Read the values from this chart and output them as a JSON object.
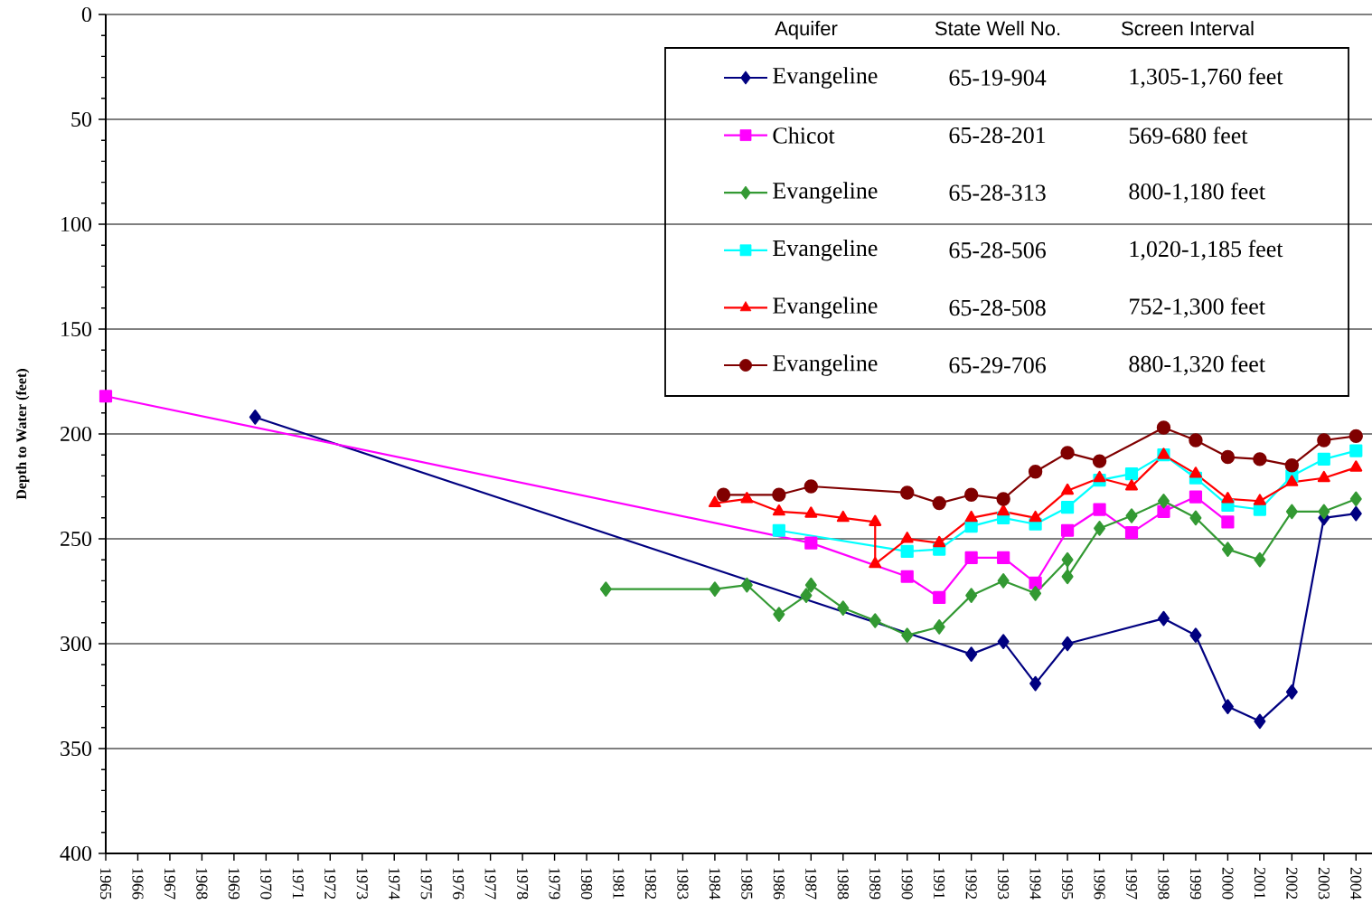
{
  "chart_data": {
    "type": "line",
    "ylabel": "Depth to Water (feet)",
    "xlim": [
      1965,
      2004.5
    ],
    "xticks": [
      1965,
      1966,
      1967,
      1968,
      1969,
      1970,
      1971,
      1972,
      1973,
      1974,
      1975,
      1976,
      1977,
      1978,
      1979,
      1980,
      1981,
      1982,
      1983,
      1984,
      1985,
      1986,
      1987,
      1988,
      1989,
      1990,
      1991,
      1992,
      1993,
      1994,
      1995,
      1996,
      1997,
      1998,
      1999,
      2000,
      2001,
      2002,
      2003,
      2004
    ],
    "ylim": [
      400,
      0
    ],
    "yticks": [
      0,
      50,
      100,
      150,
      200,
      250,
      300,
      350,
      400
    ],
    "grid": "y",
    "legend": "top right",
    "annotations": [
      "Aquifer",
      "State Well No.",
      "Screen Interval",
      "65-19-904",
      "1,305-1,760 feet",
      "65-28-201",
      "569-680 feet",
      "65-28-313",
      "800-1,180 feet",
      "65-28-506",
      "1,020-1,185 feet",
      "65-28-508",
      "752-1,300 feet",
      "65-29-706",
      "880-1,320 feet"
    ],
    "series": [
      {
        "name": "Evangeline",
        "color": "#000080",
        "marker": "diamond",
        "x": [
          1969.66,
          1992,
          1993,
          1994,
          1995,
          1998,
          1999,
          2000,
          2001,
          2002,
          2003,
          2004
        ],
        "values": [
          192,
          305,
          299,
          319,
          300,
          288,
          296,
          330,
          337,
          323,
          240,
          238
        ]
      },
      {
        "name": "Chicot",
        "color": "#ff00ff",
        "marker": "square",
        "x": [
          1965,
          1987,
          1990,
          1991,
          1992,
          1993,
          1994,
          1995,
          1996,
          1997,
          1998,
          1999,
          2000
        ],
        "values": [
          182,
          252,
          268,
          278,
          259,
          259,
          271,
          246,
          236,
          247,
          237,
          230,
          242
        ]
      },
      {
        "name": "Evangeline",
        "color": "#339933",
        "marker": "diamond",
        "x": [
          1980.6,
          1984,
          1985,
          1986,
          1986.85,
          1987,
          1988,
          1989,
          1990,
          1991,
          1992,
          1993,
          1994,
          1995,
          1995,
          1996,
          1997,
          1998,
          1999,
          2000,
          2001,
          2002,
          2003,
          2004
        ],
        "values": [
          274,
          274,
          272,
          286,
          277,
          272,
          283,
          289,
          296,
          292,
          277,
          270,
          276,
          260,
          268,
          245,
          239,
          232,
          240,
          255,
          260,
          237,
          237,
          231
        ]
      },
      {
        "name": "Evangeline",
        "color": "#00ffff",
        "marker": "square",
        "x": [
          1986,
          1990,
          1991,
          1992,
          1993,
          1994,
          1995,
          1996,
          1997,
          1998,
          1999,
          2000,
          2001,
          2002,
          2003,
          2004
        ],
        "values": [
          246,
          256,
          255,
          244,
          240,
          243,
          235,
          222,
          219,
          210,
          221,
          234,
          236,
          220,
          212,
          208
        ]
      },
      {
        "name": "Evangeline",
        "color": "#ff0000",
        "marker": "triangle",
        "x": [
          1984,
          1985,
          1986,
          1987,
          1988,
          1989,
          1989,
          1990,
          1991,
          1992,
          1993,
          1994,
          1995,
          1996,
          1997,
          1998,
          1999,
          2000,
          2001,
          2002,
          2003,
          2004
        ],
        "values": [
          233,
          231,
          237,
          238,
          240,
          242,
          262,
          250,
          252,
          240,
          237,
          240,
          227,
          221,
          225,
          210,
          219,
          231,
          232,
          223,
          221,
          216
        ]
      },
      {
        "name": "Evangeline",
        "color": "#800000",
        "marker": "circle",
        "x": [
          1984.27,
          1986,
          1987,
          1990,
          1991,
          1992,
          1993,
          1994,
          1995,
          1996,
          1998,
          1999,
          2000,
          2001,
          2002,
          2003,
          2004
        ],
        "values": [
          229,
          229,
          225,
          228,
          233,
          229,
          231,
          218,
          209,
          213,
          197,
          203,
          211,
          212,
          215,
          203,
          201
        ]
      }
    ]
  }
}
